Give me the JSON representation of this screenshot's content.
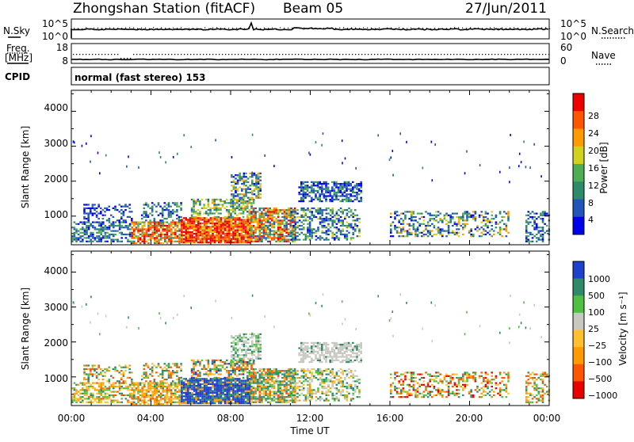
{
  "header": {
    "station": "Zhongshan Station (fitACF)",
    "beam": "Beam 05",
    "date": "27/Jun/2011"
  },
  "sky_panel": {
    "left_label": "N.Sky",
    "left_ticks": [
      "10^5",
      "10^0"
    ],
    "right_label": "N.Search",
    "right_ticks": [
      "10^5",
      "10^0"
    ]
  },
  "freq_panel": {
    "left_label_1": "Freq.",
    "left_label_2": "[MHz]",
    "left_ticks": [
      "18",
      "8"
    ],
    "right_label": "Nave",
    "right_ticks": [
      "60",
      "0"
    ]
  },
  "cpid": {
    "label": "CPID",
    "value": "normal (fast stereo) 153"
  },
  "colors": {
    "power_scale": [
      "#0000ee",
      "#2255bb",
      "#2f8a6a",
      "#4fae55",
      "#d2d21e",
      "#ff9a00",
      "#ff5500",
      "#ee0000"
    ],
    "velocity_scale": [
      "#e80000",
      "#ff5500",
      "#ff9a00",
      "#ffc030",
      "#c8c8c0",
      "#4fc040",
      "#2f8a6a",
      "#1e40cc"
    ]
  },
  "chart_data": [
    {
      "type": "heatmap",
      "name": "power",
      "ylabel": "Slant Range [km]",
      "yticks": [
        "4000",
        "3000",
        "2000",
        "1000"
      ],
      "ylim": [
        180,
        4600
      ],
      "xlim": [
        0,
        24
      ],
      "colorbar": {
        "label": "Power [dB]",
        "ticks": [
          "28",
          "24",
          "20",
          "16",
          "12",
          "8",
          "4"
        ]
      }
    },
    {
      "type": "heatmap",
      "name": "velocity",
      "ylabel": "Slant Range [km]",
      "yticks": [
        "4000",
        "3000",
        "2000",
        "1000"
      ],
      "ylim": [
        180,
        4600
      ],
      "xlim": [
        0,
        24
      ],
      "colorbar": {
        "label": "Velocity [m s⁻¹]",
        "ticks": [
          "1000",
          "500",
          "100",
          "25",
          "−25",
          "−100",
          "−500",
          "−1000"
        ]
      }
    }
  ],
  "x_axis": {
    "ticks": [
      "00:00",
      "04:00",
      "08:00",
      "12:00",
      "16:00",
      "20:00",
      "00:00"
    ],
    "label": "Time UT"
  }
}
